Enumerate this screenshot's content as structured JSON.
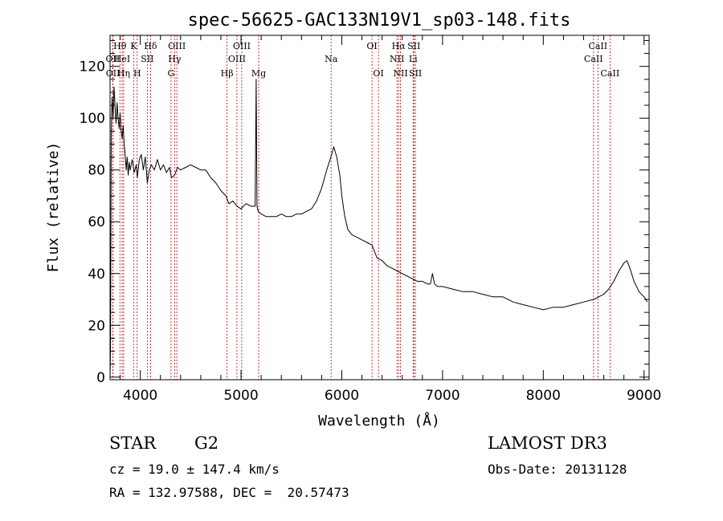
{
  "chart_data": {
    "type": "line",
    "title": "spec-56625-GAC133N19V1_sp03-148.fits",
    "xlabel": "Wavelength (Å)",
    "ylabel": "Flux (relative)",
    "xlim": [
      3700,
      9050
    ],
    "ylim": [
      -1,
      132
    ],
    "xticks": [
      "4000",
      "5000",
      "6000",
      "7000",
      "8000",
      "9000"
    ],
    "yticks": [
      "0",
      "20",
      "40",
      "60",
      "80",
      "100",
      "120"
    ],
    "series": [
      {
        "name": "flux",
        "color": "#000000",
        "points": [
          [
            3700,
            0
          ],
          [
            3705,
            12
          ],
          [
            3712,
            95
          ],
          [
            3720,
            108
          ],
          [
            3730,
            100
          ],
          [
            3740,
            112
          ],
          [
            3750,
            104
          ],
          [
            3760,
            98
          ],
          [
            3770,
            106
          ],
          [
            3780,
            100
          ],
          [
            3790,
            96
          ],
          [
            3800,
            102
          ],
          [
            3810,
            95
          ],
          [
            3820,
            92
          ],
          [
            3830,
            97
          ],
          [
            3840,
            90
          ],
          [
            3850,
            86
          ],
          [
            3860,
            80
          ],
          [
            3870,
            85
          ],
          [
            3880,
            78
          ],
          [
            3890,
            83
          ],
          [
            3900,
            80
          ],
          [
            3920,
            84
          ],
          [
            3940,
            79
          ],
          [
            3960,
            82
          ],
          [
            3970,
            77
          ],
          [
            3990,
            84
          ],
          [
            4010,
            86
          ],
          [
            4030,
            80
          ],
          [
            4050,
            85
          ],
          [
            4070,
            75
          ],
          [
            4090,
            80
          ],
          [
            4110,
            82
          ],
          [
            4140,
            80
          ],
          [
            4170,
            84
          ],
          [
            4200,
            80
          ],
          [
            4230,
            82
          ],
          [
            4260,
            79
          ],
          [
            4290,
            81
          ],
          [
            4310,
            77
          ],
          [
            4340,
            78
          ],
          [
            4370,
            81
          ],
          [
            4400,
            80
          ],
          [
            4450,
            81
          ],
          [
            4500,
            82
          ],
          [
            4550,
            81
          ],
          [
            4600,
            80
          ],
          [
            4650,
            80
          ],
          [
            4700,
            77
          ],
          [
            4750,
            75
          ],
          [
            4800,
            72
          ],
          [
            4850,
            70
          ],
          [
            4880,
            67
          ],
          [
            4920,
            68
          ],
          [
            4960,
            66
          ],
          [
            5000,
            65
          ],
          [
            5050,
            67
          ],
          [
            5100,
            66
          ],
          [
            5140,
            66
          ],
          [
            5150,
            115
          ],
          [
            5158,
            66
          ],
          [
            5170,
            64
          ],
          [
            5200,
            63
          ],
          [
            5250,
            62
          ],
          [
            5300,
            62
          ],
          [
            5350,
            62
          ],
          [
            5400,
            63
          ],
          [
            5450,
            62
          ],
          [
            5500,
            62
          ],
          [
            5550,
            63
          ],
          [
            5600,
            63
          ],
          [
            5650,
            64
          ],
          [
            5700,
            65
          ],
          [
            5750,
            68
          ],
          [
            5800,
            73
          ],
          [
            5850,
            80
          ],
          [
            5900,
            86
          ],
          [
            5920,
            89
          ],
          [
            5950,
            85
          ],
          [
            5980,
            78
          ],
          [
            6000,
            70
          ],
          [
            6030,
            62
          ],
          [
            6060,
            57
          ],
          [
            6100,
            55
          ],
          [
            6150,
            54
          ],
          [
            6200,
            53
          ],
          [
            6250,
            52
          ],
          [
            6300,
            51
          ],
          [
            6350,
            46
          ],
          [
            6400,
            45
          ],
          [
            6450,
            43
          ],
          [
            6500,
            42
          ],
          [
            6550,
            41
          ],
          [
            6600,
            40
          ],
          [
            6650,
            39
          ],
          [
            6700,
            38
          ],
          [
            6750,
            37
          ],
          [
            6800,
            37
          ],
          [
            6850,
            36
          ],
          [
            6880,
            36
          ],
          [
            6900,
            40
          ],
          [
            6920,
            36
          ],
          [
            6950,
            35
          ],
          [
            7000,
            35
          ],
          [
            7100,
            34
          ],
          [
            7200,
            33
          ],
          [
            7300,
            33
          ],
          [
            7400,
            32
          ],
          [
            7500,
            31
          ],
          [
            7600,
            31
          ],
          [
            7700,
            29
          ],
          [
            7800,
            28
          ],
          [
            7900,
            27
          ],
          [
            8000,
            26
          ],
          [
            8100,
            27
          ],
          [
            8200,
            27
          ],
          [
            8300,
            28
          ],
          [
            8400,
            29
          ],
          [
            8500,
            30
          ],
          [
            8550,
            31
          ],
          [
            8600,
            32
          ],
          [
            8650,
            34
          ],
          [
            8700,
            37
          ],
          [
            8750,
            41
          ],
          [
            8800,
            44
          ],
          [
            8830,
            45
          ],
          [
            8860,
            42
          ],
          [
            8900,
            37
          ],
          [
            8950,
            33
          ],
          [
            9000,
            31
          ],
          [
            9020,
            30
          ],
          [
            9030,
            29
          ]
        ]
      }
    ],
    "line_labels": [
      {
        "name": "OII",
        "wavelength": 3727,
        "row": 2
      },
      {
        "name": "OII",
        "wavelength": 3729,
        "row": 3
      },
      {
        "name": "Hθ",
        "wavelength": 3798,
        "row": 1
      },
      {
        "name": "HeI",
        "wavelength": 3820,
        "row": 2
      },
      {
        "name": "Hη",
        "wavelength": 3835,
        "row": 3
      },
      {
        "name": "K",
        "wavelength": 3934,
        "row": 1
      },
      {
        "name": "H",
        "wavelength": 3969,
        "row": 3
      },
      {
        "name": "SII",
        "wavelength": 4070,
        "row": 2
      },
      {
        "name": "Hδ",
        "wavelength": 4102,
        "row": 1
      },
      {
        "name": "OIII",
        "wavelength": 4363,
        "row": 1
      },
      {
        "name": "Hγ",
        "wavelength": 4341,
        "row": 2
      },
      {
        "name": "G",
        "wavelength": 4305,
        "row": 3
      },
      {
        "name": "Hβ",
        "wavelength": 4861,
        "row": 3
      },
      {
        "name": "OIII",
        "wavelength": 5007,
        "row": 1
      },
      {
        "name": "OIII",
        "wavelength": 4959,
        "row": 2
      },
      {
        "name": "Mg",
        "wavelength": 5175,
        "row": 3
      },
      {
        "name": "Na",
        "wavelength": 5894,
        "row": 2
      },
      {
        "name": "OI",
        "wavelength": 6300,
        "row": 1
      },
      {
        "name": "OI",
        "wavelength": 6364,
        "row": 3
      },
      {
        "name": "Hα",
        "wavelength": 6563,
        "row": 1
      },
      {
        "name": "NII",
        "wavelength": 6548,
        "row": 2
      },
      {
        "name": "NII",
        "wavelength": 6583,
        "row": 3
      },
      {
        "name": "SII",
        "wavelength": 6716,
        "row": 1
      },
      {
        "name": "Li",
        "wavelength": 6708,
        "row": 2
      },
      {
        "name": "SII",
        "wavelength": 6731,
        "row": 3
      },
      {
        "name": "CaII",
        "wavelength": 8542,
        "row": 1
      },
      {
        "name": "CaII",
        "wavelength": 8498,
        "row": 2
      },
      {
        "name": "CaII",
        "wavelength": 8662,
        "row": 3
      }
    ],
    "line_marker_color": "#cc0000"
  },
  "info": {
    "object_class": "STAR",
    "subclass": "G2",
    "redshift": "cz = 19.0 ± 147.4 km/s",
    "coords": "RA = 132.97588, DEC =  20.57473",
    "survey": "LAMOST DR3",
    "obs_date": "Obs-Date: 20131128"
  }
}
